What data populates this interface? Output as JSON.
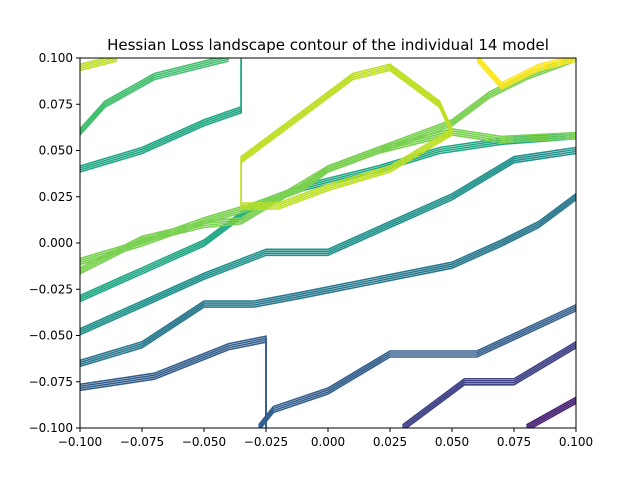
{
  "chart_data": {
    "type": "contour",
    "title": "Hessian Loss landscape contour of the individual 14 model",
    "xlabel": "",
    "ylabel": "",
    "xlim": [
      -0.1,
      0.1
    ],
    "ylim": [
      -0.1,
      0.1
    ],
    "grid": false,
    "colormap": "viridis",
    "x_ticks": [
      "−0.100",
      "−0.075",
      "−0.050",
      "−0.025",
      "0.000",
      "0.025",
      "0.050",
      "0.075",
      "0.100"
    ],
    "y_ticks": [
      "−0.100",
      "−0.075",
      "−0.050",
      "−0.025",
      "0.000",
      "0.025",
      "0.050",
      "0.075",
      "0.100"
    ],
    "x_tick_values": [
      -0.1,
      -0.075,
      -0.05,
      -0.025,
      0.0,
      0.025,
      0.05,
      0.075,
      0.1
    ],
    "y_tick_values": [
      -0.1,
      -0.075,
      -0.05,
      -0.025,
      0.0,
      0.025,
      0.05,
      0.075,
      0.1
    ],
    "levels": [
      0.0,
      0.1,
      0.2,
      0.3,
      0.4,
      0.5,
      0.6,
      0.7,
      0.8,
      0.9,
      1.0
    ],
    "colors": {
      "viridis": [
        "#440154",
        "#482475",
        "#414487",
        "#355f8d",
        "#2a788e",
        "#21918c",
        "#22a884",
        "#44bf70",
        "#7ad151",
        "#bddf26",
        "#fde725"
      ],
      "axes": "#000000"
    },
    "series": [
      {
        "level": 0.05,
        "points": [
          [
            0.08,
            -0.1
          ],
          [
            0.1,
            -0.085
          ]
        ]
      },
      {
        "level": 0.15,
        "points": [
          [
            0.03,
            -0.1
          ],
          [
            0.055,
            -0.075
          ],
          [
            0.075,
            -0.075
          ],
          [
            0.1,
            -0.055
          ]
        ]
      },
      {
        "level": 0.25,
        "points": [
          [
            -0.028,
            -0.1
          ],
          [
            -0.022,
            -0.09
          ],
          [
            0.0,
            -0.08
          ],
          [
            0.025,
            -0.06
          ],
          [
            0.06,
            -0.06
          ],
          [
            0.1,
            -0.035
          ]
        ]
      },
      {
        "level": 0.3,
        "points": [
          [
            -0.1,
            -0.078
          ],
          [
            -0.07,
            -0.072
          ],
          [
            -0.04,
            -0.056
          ],
          [
            -0.025,
            -0.052
          ],
          [
            -0.025,
            -0.1
          ]
        ]
      },
      {
        "level": 0.35,
        "points": [
          [
            -0.1,
            -0.065
          ],
          [
            -0.075,
            -0.055
          ],
          [
            -0.05,
            -0.033
          ],
          [
            -0.03,
            -0.033
          ],
          [
            -0.01,
            -0.028
          ],
          [
            0.02,
            -0.02
          ],
          [
            0.05,
            -0.012
          ],
          [
            0.07,
            0.0
          ],
          [
            0.085,
            0.01
          ],
          [
            0.1,
            0.025
          ]
        ]
      },
      {
        "level": 0.45,
        "points": [
          [
            -0.1,
            -0.048
          ],
          [
            -0.075,
            -0.033
          ],
          [
            -0.05,
            -0.018
          ],
          [
            -0.025,
            -0.005
          ],
          [
            0.0,
            -0.005
          ],
          [
            0.025,
            0.01
          ],
          [
            0.05,
            0.025
          ],
          [
            0.075,
            0.045
          ],
          [
            0.1,
            0.05
          ]
        ]
      },
      {
        "level": 0.55,
        "points": [
          [
            -0.1,
            -0.03
          ],
          [
            -0.075,
            -0.015
          ],
          [
            -0.05,
            0.0
          ],
          [
            -0.03,
            0.02
          ],
          [
            -0.01,
            0.03
          ],
          [
            0.02,
            0.04
          ],
          [
            0.045,
            0.05
          ],
          [
            0.07,
            0.055
          ],
          [
            0.1,
            0.058
          ]
        ]
      },
      {
        "level": 0.6,
        "points": [
          [
            -0.1,
            0.04
          ],
          [
            -0.075,
            0.05
          ],
          [
            -0.05,
            0.065
          ],
          [
            -0.035,
            0.072
          ],
          [
            -0.035,
            0.1
          ]
        ]
      },
      {
        "level": 0.65,
        "points": [
          [
            -0.1,
            0.06
          ],
          [
            -0.09,
            0.075
          ],
          [
            -0.07,
            0.09
          ],
          [
            -0.04,
            0.1
          ]
        ]
      },
      {
        "level": 0.75,
        "points": [
          [
            -0.1,
            -0.01
          ],
          [
            -0.075,
            0.0
          ],
          [
            -0.05,
            0.012
          ],
          [
            -0.03,
            0.02
          ],
          [
            -0.01,
            0.03
          ],
          [
            0.0,
            0.04
          ],
          [
            0.02,
            0.05
          ],
          [
            0.04,
            0.06
          ],
          [
            0.05,
            0.065
          ],
          [
            0.065,
            0.08
          ],
          [
            0.08,
            0.09
          ],
          [
            0.1,
            0.1
          ]
        ]
      },
      {
        "level": 0.8,
        "points": [
          [
            -0.1,
            -0.015
          ],
          [
            -0.075,
            0.002
          ],
          [
            -0.05,
            0.01
          ],
          [
            -0.035,
            0.012
          ],
          [
            -0.025,
            0.02
          ],
          [
            0.0,
            0.04
          ],
          [
            0.02,
            0.05
          ],
          [
            0.05,
            0.06
          ],
          [
            0.07,
            0.056
          ],
          [
            0.1,
            0.058
          ]
        ]
      },
      {
        "level": 0.85,
        "points": [
          [
            -0.035,
            0.02
          ],
          [
            -0.035,
            0.045
          ],
          [
            -0.01,
            0.07
          ],
          [
            0.01,
            0.09
          ],
          [
            0.025,
            0.095
          ],
          [
            0.045,
            0.075
          ],
          [
            0.05,
            0.06
          ],
          [
            0.025,
            0.04
          ],
          [
            0.0,
            0.03
          ],
          [
            -0.02,
            0.02
          ],
          [
            -0.035,
            0.02
          ]
        ]
      },
      {
        "level": 0.9,
        "points": [
          [
            -0.1,
            0.095
          ],
          [
            -0.085,
            0.1
          ]
        ]
      },
      {
        "level": 0.95,
        "points": [
          [
            0.06,
            0.1
          ],
          [
            0.07,
            0.085
          ],
          [
            0.085,
            0.095
          ],
          [
            0.1,
            0.1
          ]
        ]
      }
    ]
  }
}
